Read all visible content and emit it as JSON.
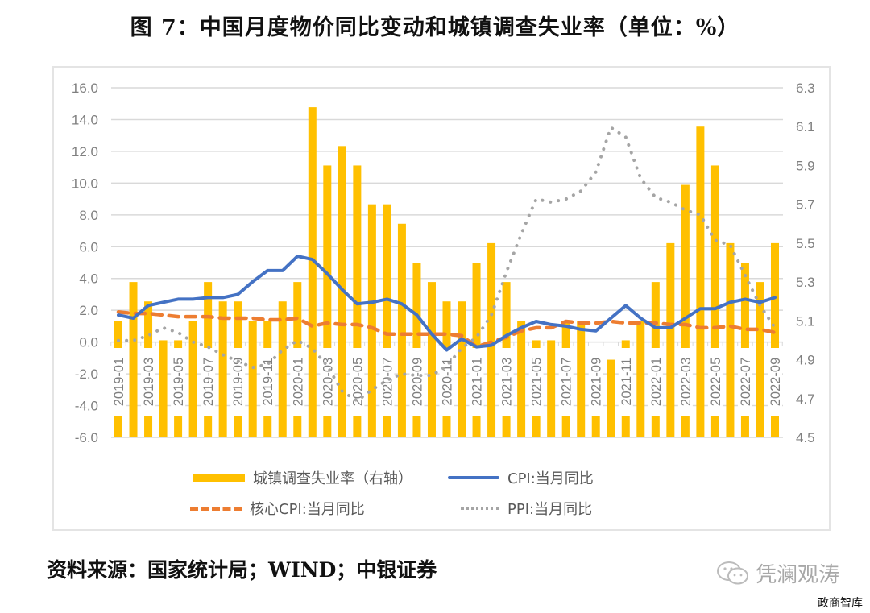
{
  "title": "图 7：中国月度物价同比变动和城镇调查失业率（单位：%）",
  "source": "资料来源：国家统计局；WIND；中银证券",
  "watermark": {
    "icon": "wechat-icon",
    "text": "凭澜观涛"
  },
  "corner_mark": "政商智库",
  "legend": {
    "unemployment": "城镇调查失业率（右轴）",
    "cpi": "CPI:当月同比",
    "core_cpi": "核心CPI:当月同比",
    "ppi": "PPI:当月同比"
  },
  "colors": {
    "unemployment": "#ffc000",
    "cpi": "#4472c4",
    "core_cpi": "#ed7d31",
    "ppi": "#a5a5a5",
    "grid": "#d9d9d9",
    "tick_text": "#7f7f7f"
  },
  "chart_data": {
    "type": "bar+line",
    "title": "图 7：中国月度物价同比变动和城镇调查失业率（单位：%）",
    "xlabel": "",
    "ylabel": "",
    "grid": true,
    "legend_position": "bottom",
    "left_axis": {
      "range": [
        -6.0,
        16.0
      ],
      "ticks": [
        "16.0",
        "14.0",
        "12.0",
        "10.0",
        "8.0",
        "6.0",
        "4.0",
        "2.0",
        "0.0",
        "-2.0",
        "-4.0",
        "-6.0"
      ]
    },
    "right_axis": {
      "range": [
        4.5,
        6.3
      ],
      "ticks": [
        "6.3",
        "6.1",
        "5.9",
        "5.7",
        "5.5",
        "5.3",
        "5.1",
        "4.9",
        "4.7",
        "4.5"
      ]
    },
    "categories": [
      "2019-01",
      "2019-02",
      "2019-03",
      "2019-04",
      "2019-05",
      "2019-06",
      "2019-07",
      "2019-08",
      "2019-09",
      "2019-10",
      "2019-11",
      "2019-12",
      "2020-01",
      "2020-02",
      "2020-03",
      "2020-04",
      "2020-05",
      "2020-06",
      "2020-07",
      "2020-08",
      "2020-09",
      "2020-10",
      "2020-11",
      "2020-12",
      "2021-01",
      "2021-02",
      "2021-03",
      "2021-04",
      "2021-05",
      "2021-06",
      "2021-07",
      "2021-08",
      "2021-09",
      "2021-10",
      "2021-11",
      "2021-12",
      "2022-01",
      "2022-02",
      "2022-03",
      "2022-04",
      "2022-05",
      "2022-06",
      "2022-07",
      "2022-08",
      "2022-09"
    ],
    "tick_labels_shown": [
      "2019-01",
      "2019-03",
      "2019-05",
      "2019-07",
      "2019-09",
      "2019-11",
      "2020-01",
      "2020-03",
      "2020-05",
      "2020-07",
      "2020-09",
      "2020-11",
      "2021-01",
      "2021-03",
      "2021-05",
      "2021-07",
      "2021-09",
      "2021-11",
      "2022-01",
      "2022-03",
      "2022-05",
      "2022-07",
      "2022-09"
    ],
    "series": [
      {
        "name": "城镇调查失业率（右轴）",
        "type": "bar",
        "axis": "right",
        "values": [
          5.1,
          5.3,
          5.2,
          5.0,
          5.0,
          5.1,
          5.3,
          5.2,
          5.2,
          5.1,
          5.1,
          5.2,
          5.3,
          6.2,
          5.9,
          6.0,
          5.9,
          5.7,
          5.7,
          5.6,
          5.4,
          5.3,
          5.2,
          5.2,
          5.4,
          5.5,
          5.3,
          5.1,
          5.0,
          5.0,
          5.1,
          5.1,
          4.9,
          4.9,
          5.0,
          5.1,
          5.3,
          5.5,
          5.8,
          6.1,
          5.9,
          5.5,
          5.4,
          5.3,
          5.5
        ]
      },
      {
        "name": "CPI:当月同比",
        "type": "line",
        "axis": "left",
        "values": [
          1.7,
          1.5,
          2.3,
          2.5,
          2.7,
          2.7,
          2.8,
          2.8,
          3.0,
          3.8,
          4.5,
          4.5,
          5.4,
          5.2,
          4.3,
          3.3,
          2.4,
          2.5,
          2.7,
          2.4,
          1.7,
          0.5,
          -0.5,
          0.2,
          -0.3,
          -0.2,
          0.4,
          0.9,
          1.3,
          1.1,
          1.0,
          0.8,
          0.7,
          1.5,
          2.3,
          1.5,
          0.9,
          0.9,
          1.5,
          2.1,
          2.1,
          2.5,
          2.7,
          2.5,
          2.8
        ]
      },
      {
        "name": "核心CPI:当月同比",
        "type": "line",
        "style": "dashed",
        "axis": "left",
        "values": [
          1.9,
          1.8,
          1.8,
          1.7,
          1.6,
          1.6,
          1.6,
          1.5,
          1.5,
          1.5,
          1.4,
          1.4,
          1.5,
          1.0,
          1.2,
          1.1,
          1.1,
          0.9,
          0.5,
          0.5,
          0.5,
          0.5,
          0.5,
          0.4,
          -0.3,
          0.0,
          0.3,
          0.7,
          0.9,
          0.9,
          1.3,
          1.2,
          1.2,
          1.3,
          1.2,
          1.2,
          1.2,
          1.1,
          1.1,
          0.9,
          0.9,
          1.0,
          0.8,
          0.8,
          0.6
        ]
      },
      {
        "name": "PPI:当月同比",
        "type": "line",
        "style": "dotted",
        "axis": "left",
        "values": [
          0.1,
          0.1,
          0.4,
          0.9,
          0.6,
          0.0,
          -0.3,
          -0.8,
          -1.2,
          -1.6,
          -1.4,
          -0.5,
          0.1,
          -0.4,
          -1.5,
          -3.1,
          -3.7,
          -3.0,
          -2.4,
          -2.0,
          -2.1,
          -2.1,
          -1.5,
          -0.4,
          0.3,
          1.7,
          4.4,
          6.8,
          9.0,
          8.8,
          9.0,
          9.5,
          10.7,
          13.5,
          12.9,
          10.3,
          9.1,
          8.8,
          8.3,
          8.0,
          6.4,
          6.1,
          4.2,
          2.3,
          0.9
        ]
      }
    ]
  }
}
